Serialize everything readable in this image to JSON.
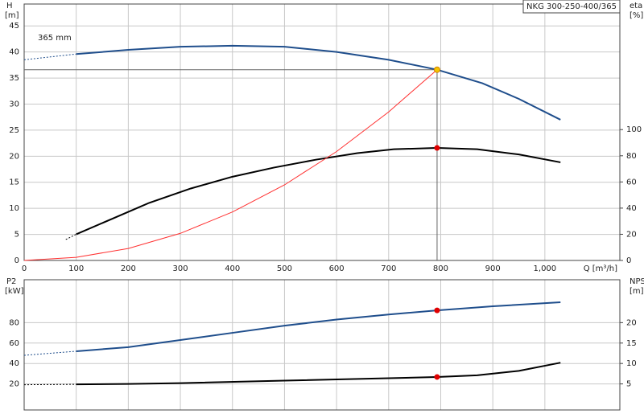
{
  "chart_data": [
    {
      "type": "line",
      "title": "NKG 300-250-400/365",
      "ylabel": "H",
      "yunit": "[m]",
      "y2label": "eta",
      "y2unit": "[%]",
      "xlabel": "Q [m³/h]",
      "xlim": [
        0,
        1144
      ],
      "xticks": [
        0,
        100,
        200,
        300,
        400,
        500,
        600,
        700,
        800,
        900,
        {
          "value": 1000,
          "label": "1,000"
        }
      ],
      "xtick_labels": true,
      "ylim": [
        0,
        49.2
      ],
      "yticks": [
        0,
        5,
        10,
        15,
        20,
        25,
        30,
        35,
        40,
        45
      ],
      "y2lim": [
        0,
        196
      ],
      "y2ticks": [
        0,
        20,
        40,
        60,
        80,
        100
      ],
      "grid": true,
      "series": [
        {
          "name": "365 mm",
          "color": "#1f4e8c",
          "width": 2,
          "dashed": false,
          "x": [
            100,
            200,
            300,
            400,
            500,
            600,
            700,
            793,
            880,
            950,
            1030
          ],
          "values": [
            39.6,
            40.4,
            41.0,
            41.2,
            41.0,
            40.0,
            38.5,
            36.6,
            34.0,
            31.0,
            27.0
          ]
        },
        {
          "color": "#1f4e8c",
          "width": 1,
          "dashed": true,
          "x": [
            0,
            100
          ],
          "values": [
            38.5,
            39.6
          ]
        },
        {
          "color": "#000000",
          "width": 2,
          "dashed": false,
          "axis": "y2",
          "x": [
            100,
            170,
            240,
            320,
            400,
            480,
            560,
            640,
            710,
            793,
            870,
            950,
            1030
          ],
          "values": [
            20,
            32,
            44,
            55,
            64,
            71,
            77,
            82,
            85,
            86,
            85,
            81,
            75
          ]
        },
        {
          "color": "#000000",
          "width": 1,
          "dashed": true,
          "axis": "y2",
          "x": [
            80,
            100
          ],
          "values": [
            16,
            20
          ]
        },
        {
          "color": "#ff3030",
          "width": 1,
          "dashed": false,
          "x": [
            0,
            100,
            200,
            300,
            400,
            500,
            600,
            700,
            793
          ],
          "values": [
            0,
            0.6,
            2.3,
            5.2,
            9.3,
            14.5,
            20.9,
            28.5,
            36.6
          ]
        }
      ],
      "markers": [
        {
          "x": 793,
          "y": 36.6,
          "color": "#f5c400",
          "guides": true
        },
        {
          "x": 793,
          "y": 86,
          "axis": "y2",
          "color": "#e00000",
          "guides": false
        }
      ]
    },
    {
      "type": "line",
      "ylabel": "P2",
      "yunit": "[kW]",
      "y2label": "NPSH",
      "y2unit": "[m]",
      "xlim": [
        0,
        1144
      ],
      "xticks": [
        0,
        100,
        200,
        300,
        400,
        500,
        600,
        700,
        800,
        900,
        1000
      ],
      "xtick_labels": false,
      "ylim": [
        -5.5,
        122
      ],
      "yticks": [
        20,
        40,
        60,
        80
      ],
      "y2lim": [
        -1.375,
        30.5
      ],
      "y2ticks": [
        5,
        10,
        15,
        20
      ],
      "grid": true,
      "series": [
        {
          "color": "#1f4e8c",
          "width": 2,
          "dashed": false,
          "x": [
            100,
            200,
            300,
            400,
            500,
            600,
            700,
            793,
            900,
            1030
          ],
          "values": [
            52,
            56,
            63,
            70,
            77,
            83,
            88,
            92,
            96,
            100
          ]
        },
        {
          "color": "#1f4e8c",
          "width": 1,
          "dashed": true,
          "x": [
            0,
            100
          ],
          "values": [
            48,
            52
          ]
        },
        {
          "color": "#000000",
          "width": 2,
          "dashed": false,
          "axis": "y2",
          "x": [
            100,
            200,
            300,
            500,
            700,
            793,
            870,
            950,
            1030
          ],
          "values": [
            4.9,
            5.0,
            5.2,
            5.8,
            6.4,
            6.7,
            7.1,
            8.2,
            10.2
          ]
        },
        {
          "color": "#000000",
          "width": 1,
          "dashed": true,
          "axis": "y2",
          "x": [
            0,
            100
          ],
          "values": [
            4.8,
            4.9
          ]
        }
      ],
      "markers": [
        {
          "x": 793,
          "y": 92,
          "color": "#e00000",
          "guides": false
        },
        {
          "x": 793,
          "y": 6.7,
          "axis": "y2",
          "color": "#e00000",
          "guides": false
        }
      ]
    }
  ]
}
